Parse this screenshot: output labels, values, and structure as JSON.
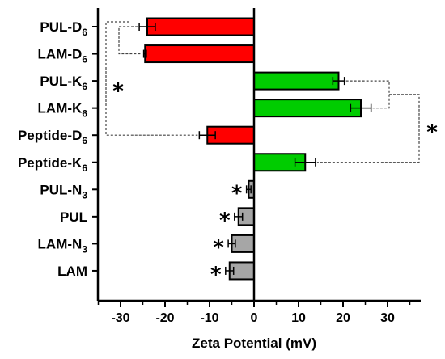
{
  "chart_data": {
    "type": "bar",
    "orientation": "horizontal",
    "xlabel": "Zeta Potential (mV)",
    "ylabel": "",
    "title": "",
    "xlim": [
      -35,
      37
    ],
    "xticks": [
      -30,
      -20,
      -10,
      0,
      10,
      20,
      30
    ],
    "categories": [
      {
        "base": "PUL-D",
        "sub": "6"
      },
      {
        "base": "LAM-D",
        "sub": "6"
      },
      {
        "base": "PUL-K",
        "sub": "6"
      },
      {
        "base": "LAM-K",
        "sub": "6"
      },
      {
        "base": "Peptide-D",
        "sub": "6"
      },
      {
        "base": "Peptide-K",
        "sub": "6"
      },
      {
        "base": "PUL-N",
        "sub": "3"
      },
      {
        "base": "PUL",
        "sub": ""
      },
      {
        "base": "LAM-N",
        "sub": "3"
      },
      {
        "base": "LAM",
        "sub": ""
      }
    ],
    "values": [
      -24.0,
      -24.5,
      19.0,
      24.0,
      -10.5,
      11.5,
      -1.2,
      -3.5,
      -5.0,
      -5.5
    ],
    "errors": [
      1.8,
      0.3,
      1.3,
      2.3,
      1.8,
      2.3,
      0.5,
      0.9,
      0.8,
      0.9
    ],
    "colors": [
      "#ff0000",
      "#ff0000",
      "#00cc00",
      "#00cc00",
      "#ff0000",
      "#00cc00",
      "#a6a6a6",
      "#a6a6a6",
      "#a6a6a6",
      "#a6a6a6"
    ],
    "significance_brackets": [
      {
        "between": [
          "PUL-D6",
          "LAM-D6"
        ],
        "label": ""
      },
      {
        "between": [
          "PUL-K6",
          "LAM-K6"
        ],
        "label": ""
      },
      {
        "between": [
          "D6 group",
          "Peptide-D6"
        ],
        "label": "*"
      },
      {
        "between": [
          "K6 group",
          "Peptide-K6"
        ],
        "label": "*"
      }
    ],
    "significance_marks": [
      {
        "category": "PUL-N3",
        "label": "*"
      },
      {
        "category": "PUL",
        "label": "*"
      },
      {
        "category": "LAM-N3",
        "label": "*"
      },
      {
        "category": "LAM",
        "label": "*"
      }
    ],
    "legend": "none",
    "grid": false
  }
}
